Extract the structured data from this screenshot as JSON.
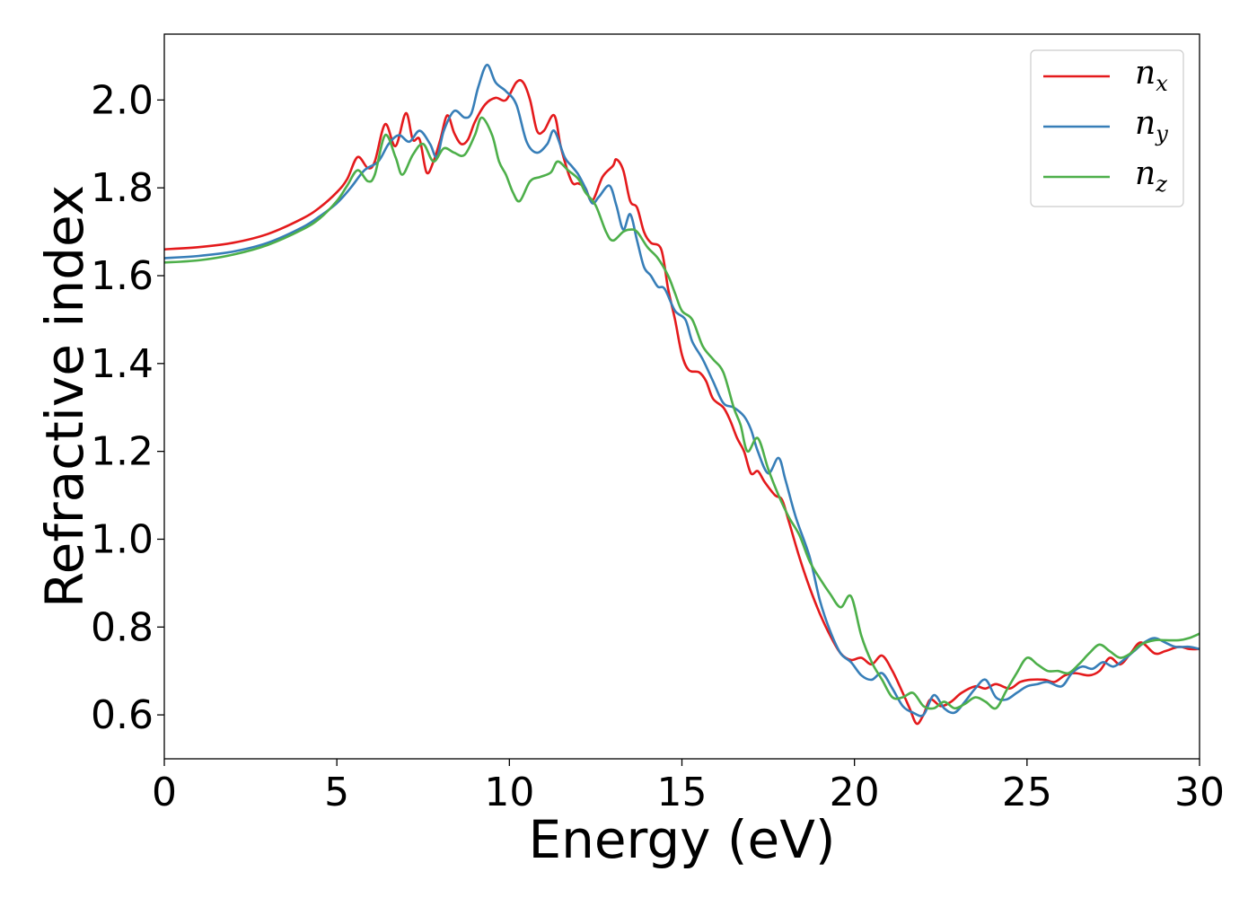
{
  "chart_data": {
    "type": "line",
    "xlabel": "Energy (eV)",
    "ylabel": "Refractive index",
    "xlim": [
      0,
      30
    ],
    "ylim": [
      0.5,
      2.15
    ],
    "xticks": [
      0,
      5,
      10,
      15,
      20,
      25,
      30
    ],
    "xtick_labels": [
      "0",
      "5",
      "10",
      "15",
      "20",
      "25",
      "30"
    ],
    "yticks": [
      0.6,
      0.8,
      1.0,
      1.2,
      1.4,
      1.6,
      1.8,
      2.0
    ],
    "ytick_labels": [
      "0.6",
      "0.8",
      "1.0",
      "1.2",
      "1.4",
      "1.6",
      "1.8",
      "2.0"
    ],
    "grid": false,
    "legend_position": "top-right",
    "series": [
      {
        "name": "n_x",
        "label_base": "n",
        "label_sub": "x",
        "color": "#e41a1c",
        "points": [
          [
            0,
            1.66
          ],
          [
            1,
            1.665
          ],
          [
            2,
            1.675
          ],
          [
            3,
            1.695
          ],
          [
            4,
            1.73
          ],
          [
            4.5,
            1.755
          ],
          [
            5,
            1.79
          ],
          [
            5.3,
            1.82
          ],
          [
            5.6,
            1.87
          ],
          [
            5.9,
            1.845
          ],
          [
            6.1,
            1.86
          ],
          [
            6.4,
            1.945
          ],
          [
            6.7,
            1.895
          ],
          [
            7.0,
            1.97
          ],
          [
            7.2,
            1.91
          ],
          [
            7.4,
            1.91
          ],
          [
            7.6,
            1.835
          ],
          [
            7.8,
            1.86
          ],
          [
            8.0,
            1.91
          ],
          [
            8.2,
            1.965
          ],
          [
            8.4,
            1.925
          ],
          [
            8.6,
            1.9
          ],
          [
            8.8,
            1.91
          ],
          [
            9.0,
            1.95
          ],
          [
            9.3,
            1.99
          ],
          [
            9.6,
            2.005
          ],
          [
            9.9,
            2.0
          ],
          [
            10.2,
            2.04
          ],
          [
            10.4,
            2.04
          ],
          [
            10.6,
            2.0
          ],
          [
            10.8,
            1.93
          ],
          [
            11.0,
            1.93
          ],
          [
            11.3,
            1.965
          ],
          [
            11.5,
            1.89
          ],
          [
            11.8,
            1.815
          ],
          [
            12.0,
            1.81
          ],
          [
            12.2,
            1.8
          ],
          [
            12.4,
            1.77
          ],
          [
            12.7,
            1.825
          ],
          [
            13.0,
            1.85
          ],
          [
            13.1,
            1.865
          ],
          [
            13.3,
            1.84
          ],
          [
            13.5,
            1.77
          ],
          [
            13.7,
            1.755
          ],
          [
            13.9,
            1.7
          ],
          [
            14.1,
            1.675
          ],
          [
            14.4,
            1.66
          ],
          [
            14.6,
            1.57
          ],
          [
            14.8,
            1.5
          ],
          [
            15.0,
            1.42
          ],
          [
            15.2,
            1.385
          ],
          [
            15.5,
            1.38
          ],
          [
            15.7,
            1.36
          ],
          [
            15.9,
            1.32
          ],
          [
            16.2,
            1.3
          ],
          [
            16.4,
            1.27
          ],
          [
            16.6,
            1.23
          ],
          [
            16.8,
            1.2
          ],
          [
            17.0,
            1.15
          ],
          [
            17.2,
            1.155
          ],
          [
            17.4,
            1.13
          ],
          [
            17.7,
            1.1
          ],
          [
            17.9,
            1.09
          ],
          [
            18.1,
            1.04
          ],
          [
            18.4,
            0.96
          ],
          [
            18.7,
            0.89
          ],
          [
            19.0,
            0.83
          ],
          [
            19.3,
            0.78
          ],
          [
            19.6,
            0.74
          ],
          [
            19.9,
            0.725
          ],
          [
            20.2,
            0.73
          ],
          [
            20.5,
            0.715
          ],
          [
            20.8,
            0.735
          ],
          [
            21.1,
            0.7
          ],
          [
            21.4,
            0.65
          ],
          [
            21.6,
            0.615
          ],
          [
            21.8,
            0.58
          ],
          [
            22.0,
            0.6
          ],
          [
            22.2,
            0.635
          ],
          [
            22.5,
            0.62
          ],
          [
            22.8,
            0.63
          ],
          [
            23.1,
            0.65
          ],
          [
            23.5,
            0.665
          ],
          [
            23.8,
            0.66
          ],
          [
            24.1,
            0.67
          ],
          [
            24.5,
            0.66
          ],
          [
            24.8,
            0.675
          ],
          [
            25.1,
            0.68
          ],
          [
            25.5,
            0.68
          ],
          [
            25.8,
            0.675
          ],
          [
            26.1,
            0.69
          ],
          [
            26.4,
            0.695
          ],
          [
            26.8,
            0.69
          ],
          [
            27.1,
            0.7
          ],
          [
            27.4,
            0.73
          ],
          [
            27.7,
            0.715
          ],
          [
            28.0,
            0.74
          ],
          [
            28.3,
            0.765
          ],
          [
            28.7,
            0.74
          ],
          [
            29.0,
            0.745
          ],
          [
            29.4,
            0.755
          ],
          [
            29.7,
            0.75
          ],
          [
            30.0,
            0.75
          ]
        ]
      },
      {
        "name": "n_y",
        "label_base": "n",
        "label_sub": "y",
        "color": "#377eb8",
        "points": [
          [
            0,
            1.64
          ],
          [
            1,
            1.645
          ],
          [
            2,
            1.655
          ],
          [
            3,
            1.675
          ],
          [
            4,
            1.71
          ],
          [
            4.5,
            1.735
          ],
          [
            5,
            1.765
          ],
          [
            5.4,
            1.8
          ],
          [
            5.8,
            1.84
          ],
          [
            6.2,
            1.86
          ],
          [
            6.5,
            1.9
          ],
          [
            6.8,
            1.92
          ],
          [
            7.1,
            1.905
          ],
          [
            7.4,
            1.93
          ],
          [
            7.7,
            1.9
          ],
          [
            7.9,
            1.87
          ],
          [
            8.1,
            1.93
          ],
          [
            8.4,
            1.975
          ],
          [
            8.7,
            1.96
          ],
          [
            8.9,
            1.97
          ],
          [
            9.1,
            2.03
          ],
          [
            9.35,
            2.08
          ],
          [
            9.6,
            2.04
          ],
          [
            9.9,
            2.02
          ],
          [
            10.2,
            1.99
          ],
          [
            10.5,
            1.905
          ],
          [
            10.8,
            1.88
          ],
          [
            11.1,
            1.9
          ],
          [
            11.3,
            1.93
          ],
          [
            11.6,
            1.87
          ],
          [
            11.8,
            1.85
          ],
          [
            12.0,
            1.83
          ],
          [
            12.2,
            1.8
          ],
          [
            12.4,
            1.765
          ],
          [
            12.6,
            1.78
          ],
          [
            12.9,
            1.805
          ],
          [
            13.1,
            1.76
          ],
          [
            13.3,
            1.705
          ],
          [
            13.5,
            1.74
          ],
          [
            13.7,
            1.68
          ],
          [
            13.9,
            1.62
          ],
          [
            14.1,
            1.6
          ],
          [
            14.3,
            1.575
          ],
          [
            14.5,
            1.57
          ],
          [
            14.8,
            1.52
          ],
          [
            15.1,
            1.5
          ],
          [
            15.3,
            1.45
          ],
          [
            15.6,
            1.41
          ],
          [
            15.9,
            1.36
          ],
          [
            16.2,
            1.31
          ],
          [
            16.5,
            1.3
          ],
          [
            16.8,
            1.28
          ],
          [
            17.0,
            1.25
          ],
          [
            17.2,
            1.2
          ],
          [
            17.5,
            1.15
          ],
          [
            17.8,
            1.185
          ],
          [
            18.0,
            1.135
          ],
          [
            18.3,
            1.05
          ],
          [
            18.7,
            0.96
          ],
          [
            19.0,
            0.86
          ],
          [
            19.3,
            0.79
          ],
          [
            19.6,
            0.74
          ],
          [
            19.9,
            0.72
          ],
          [
            20.2,
            0.69
          ],
          [
            20.5,
            0.68
          ],
          [
            20.8,
            0.695
          ],
          [
            21.1,
            0.66
          ],
          [
            21.4,
            0.62
          ],
          [
            21.7,
            0.605
          ],
          [
            22.0,
            0.6
          ],
          [
            22.3,
            0.645
          ],
          [
            22.6,
            0.615
          ],
          [
            22.9,
            0.605
          ],
          [
            23.2,
            0.63
          ],
          [
            23.5,
            0.66
          ],
          [
            23.8,
            0.68
          ],
          [
            24.1,
            0.64
          ],
          [
            24.4,
            0.635
          ],
          [
            24.7,
            0.65
          ],
          [
            25.0,
            0.665
          ],
          [
            25.3,
            0.67
          ],
          [
            25.6,
            0.675
          ],
          [
            26.0,
            0.665
          ],
          [
            26.3,
            0.695
          ],
          [
            26.6,
            0.71
          ],
          [
            26.9,
            0.705
          ],
          [
            27.2,
            0.72
          ],
          [
            27.5,
            0.71
          ],
          [
            27.8,
            0.725
          ],
          [
            28.1,
            0.745
          ],
          [
            28.4,
            0.765
          ],
          [
            28.7,
            0.775
          ],
          [
            29.0,
            0.765
          ],
          [
            29.3,
            0.755
          ],
          [
            29.7,
            0.755
          ],
          [
            30.0,
            0.75
          ]
        ]
      },
      {
        "name": "n_z",
        "label_base": "n",
        "label_sub": "z",
        "color": "#4daf4a",
        "points": [
          [
            0,
            1.63
          ],
          [
            1,
            1.635
          ],
          [
            2,
            1.648
          ],
          [
            3,
            1.67
          ],
          [
            4,
            1.705
          ],
          [
            4.5,
            1.73
          ],
          [
            5,
            1.77
          ],
          [
            5.3,
            1.805
          ],
          [
            5.6,
            1.84
          ],
          [
            5.9,
            1.815
          ],
          [
            6.1,
            1.83
          ],
          [
            6.4,
            1.92
          ],
          [
            6.7,
            1.87
          ],
          [
            6.9,
            1.83
          ],
          [
            7.2,
            1.875
          ],
          [
            7.5,
            1.9
          ],
          [
            7.8,
            1.86
          ],
          [
            8.1,
            1.89
          ],
          [
            8.4,
            1.88
          ],
          [
            8.7,
            1.875
          ],
          [
            9.0,
            1.92
          ],
          [
            9.2,
            1.96
          ],
          [
            9.5,
            1.92
          ],
          [
            9.7,
            1.86
          ],
          [
            9.9,
            1.83
          ],
          [
            10.1,
            1.79
          ],
          [
            10.3,
            1.77
          ],
          [
            10.6,
            1.815
          ],
          [
            10.9,
            1.825
          ],
          [
            11.2,
            1.835
          ],
          [
            11.4,
            1.86
          ],
          [
            11.7,
            1.84
          ],
          [
            12.0,
            1.82
          ],
          [
            12.2,
            1.79
          ],
          [
            12.5,
            1.76
          ],
          [
            12.8,
            1.7
          ],
          [
            13.0,
            1.68
          ],
          [
            13.3,
            1.7
          ],
          [
            13.5,
            1.705
          ],
          [
            13.7,
            1.7
          ],
          [
            14.0,
            1.665
          ],
          [
            14.3,
            1.64
          ],
          [
            14.6,
            1.6
          ],
          [
            14.8,
            1.56
          ],
          [
            15.0,
            1.52
          ],
          [
            15.3,
            1.5
          ],
          [
            15.6,
            1.44
          ],
          [
            15.9,
            1.41
          ],
          [
            16.2,
            1.38
          ],
          [
            16.5,
            1.3
          ],
          [
            16.7,
            1.26
          ],
          [
            16.9,
            1.2
          ],
          [
            17.2,
            1.23
          ],
          [
            17.5,
            1.16
          ],
          [
            17.8,
            1.1
          ],
          [
            18.1,
            1.05
          ],
          [
            18.4,
            1.01
          ],
          [
            18.7,
            0.95
          ],
          [
            19.0,
            0.91
          ],
          [
            19.3,
            0.875
          ],
          [
            19.6,
            0.845
          ],
          [
            19.9,
            0.87
          ],
          [
            20.2,
            0.78
          ],
          [
            20.5,
            0.72
          ],
          [
            20.8,
            0.68
          ],
          [
            21.1,
            0.64
          ],
          [
            21.4,
            0.64
          ],
          [
            21.7,
            0.65
          ],
          [
            22.0,
            0.62
          ],
          [
            22.3,
            0.615
          ],
          [
            22.6,
            0.63
          ],
          [
            22.9,
            0.615
          ],
          [
            23.2,
            0.625
          ],
          [
            23.5,
            0.64
          ],
          [
            23.8,
            0.63
          ],
          [
            24.1,
            0.615
          ],
          [
            24.4,
            0.655
          ],
          [
            24.7,
            0.695
          ],
          [
            25.0,
            0.73
          ],
          [
            25.3,
            0.715
          ],
          [
            25.6,
            0.7
          ],
          [
            25.9,
            0.7
          ],
          [
            26.2,
            0.695
          ],
          [
            26.5,
            0.715
          ],
          [
            26.8,
            0.74
          ],
          [
            27.1,
            0.76
          ],
          [
            27.4,
            0.745
          ],
          [
            27.7,
            0.73
          ],
          [
            28.0,
            0.74
          ],
          [
            28.3,
            0.76
          ],
          [
            28.7,
            0.77
          ],
          [
            29.0,
            0.77
          ],
          [
            29.4,
            0.77
          ],
          [
            29.7,
            0.775
          ],
          [
            30.0,
            0.785
          ]
        ]
      }
    ]
  }
}
